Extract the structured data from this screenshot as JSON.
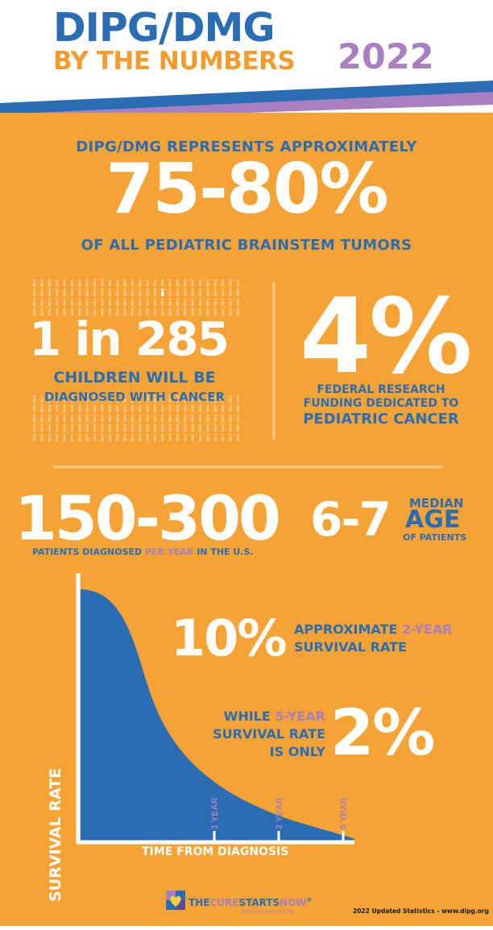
{
  "header": {
    "title_line1": "DIPG/DMG",
    "title_line2": "BY THE NUMBERS",
    "year": "2022"
  },
  "section1": {
    "intro": "DIPG/DMG REPRESENTS APPROXIMATELY",
    "big_percent": "75-80%",
    "outro": "OF ALL PEDIATRIC  BRAINSTEM TUMORS"
  },
  "section2": {
    "ratio": "1 in 285",
    "ratio_label_line1": "CHILDREN WILL BE",
    "ratio_label_line2": "DIAGNOSED WITH CANCER",
    "funding_percent": "4%",
    "funding_line1": "FEDERAL RESEARCH",
    "funding_line2": "FUNDING DEDICATED TO",
    "funding_line3": "PEDIATRIC CANCER"
  },
  "section3": {
    "patients_range": "150-300",
    "patients_label_part1": "PATIENTS DIAGNOSED ",
    "patients_label_part2": "PER YEAR",
    "patients_label_part3": " IN THE U.S.",
    "age_range": "6-7",
    "median_label": "MEDIAN",
    "age_label": "AGE",
    "of_patients_label": "OF PATIENTS"
  },
  "chart_data": {
    "type": "area",
    "ylabel": "SURVIVAL RATE",
    "xlabel": "TIME FROM DIAGNOSIS",
    "x_markers": [
      "1 YEAR",
      "2 YEAR",
      "5 YEAR"
    ],
    "annotations": {
      "two_year_value": "10%",
      "two_year_part1": "APPROXIMATE ",
      "two_year_part2": "2-YEAR",
      "two_year_part3": "SURVIVAL RATE",
      "five_year_line1_part1": "WHILE ",
      "five_year_line1_part2": "5-YEAR",
      "five_year_line2": "SURVIVAL RATE",
      "five_year_line3": "IS ONLY",
      "five_year_value": "2%"
    }
  },
  "footer": {
    "logo_the": "THE",
    "logo_cure": "CURE",
    "logo_starts": "STARTS",
    "logo_now": "NOW",
    "logo_reg": "®",
    "logo_url": "thecurestartsnow.org",
    "note": "2022 Updated Statistics - www.dipg.org"
  },
  "colors": {
    "orange": "#f5a334",
    "blue": "#2b6db5",
    "purple": "#a87fbf",
    "white": "#ffffff"
  }
}
